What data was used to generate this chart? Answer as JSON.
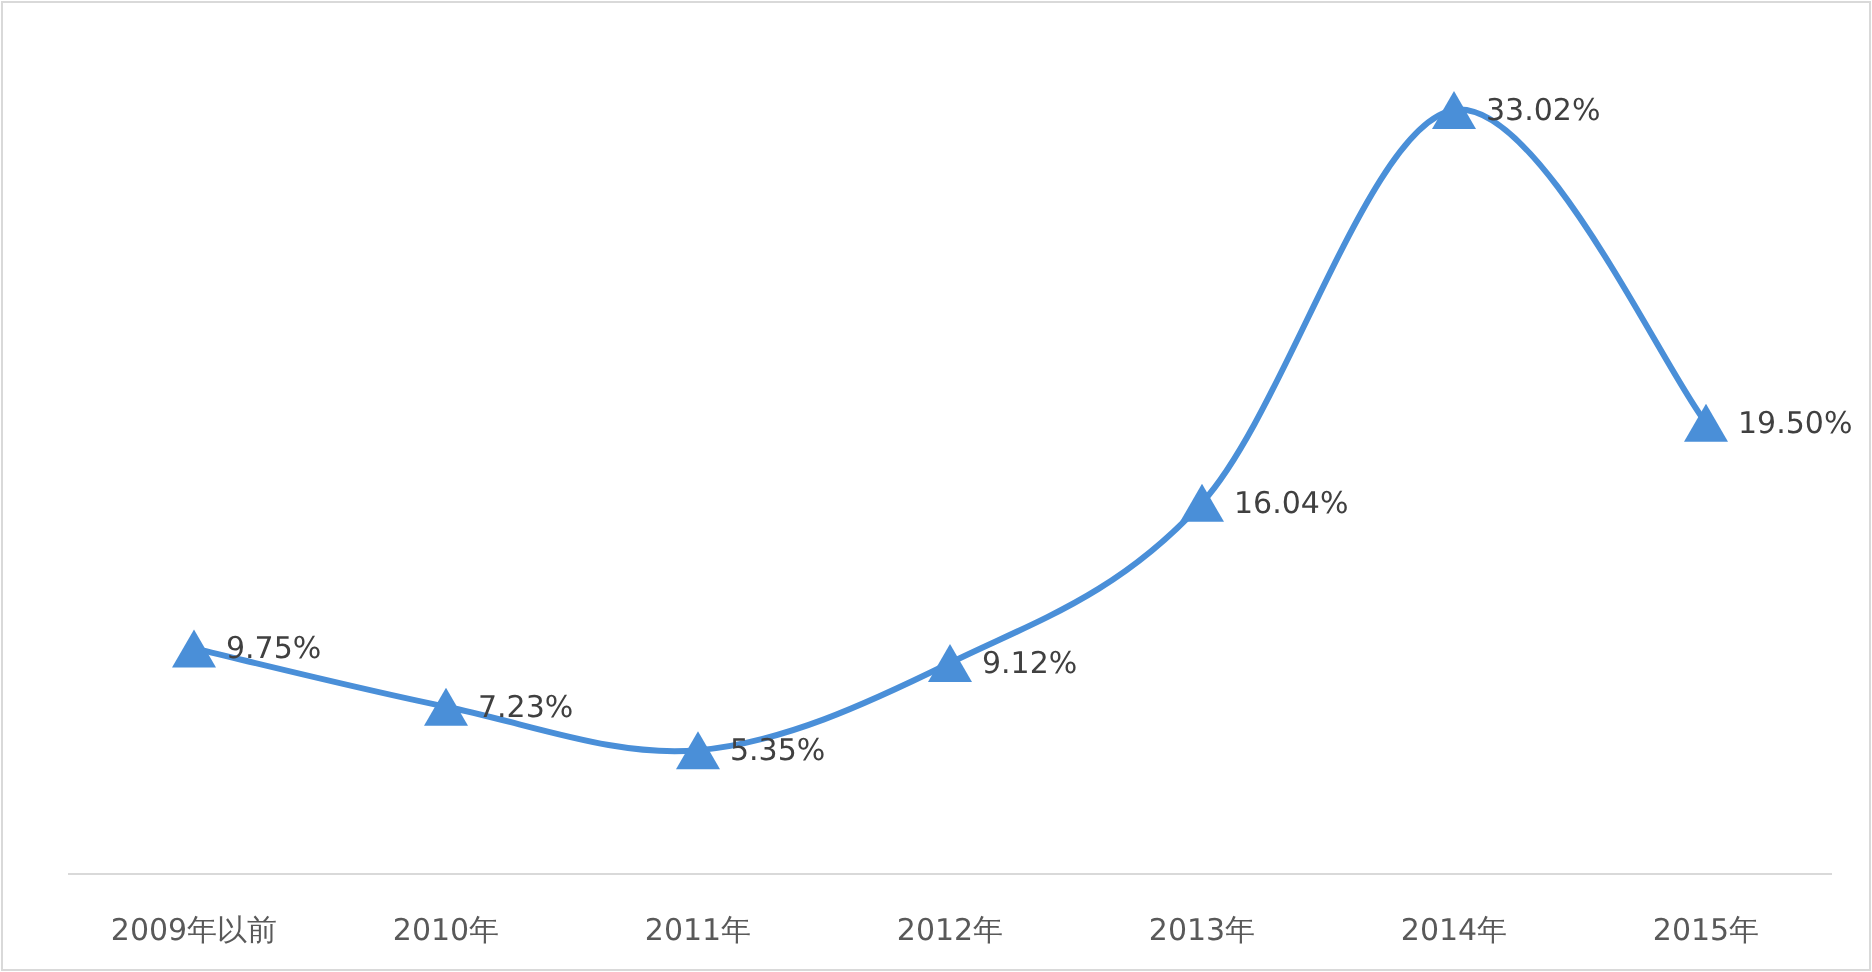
{
  "chart_data": {
    "type": "line",
    "categories": [
      "2009年以前",
      "2010年",
      "2011年",
      "2012年",
      "2013年",
      "2014年",
      "2015年"
    ],
    "series": [
      {
        "color": "#4a8fd8",
        "values": [
          9.75,
          7.23,
          5.35,
          9.12,
          16.04,
          33.02,
          19.5
        ],
        "value_labels": [
          "9.75%",
          "7.23%",
          "5.35%",
          "9.12%",
          "16.04%",
          "33.02%",
          "19.50%"
        ]
      }
    ],
    "marker": "triangle"
  }
}
